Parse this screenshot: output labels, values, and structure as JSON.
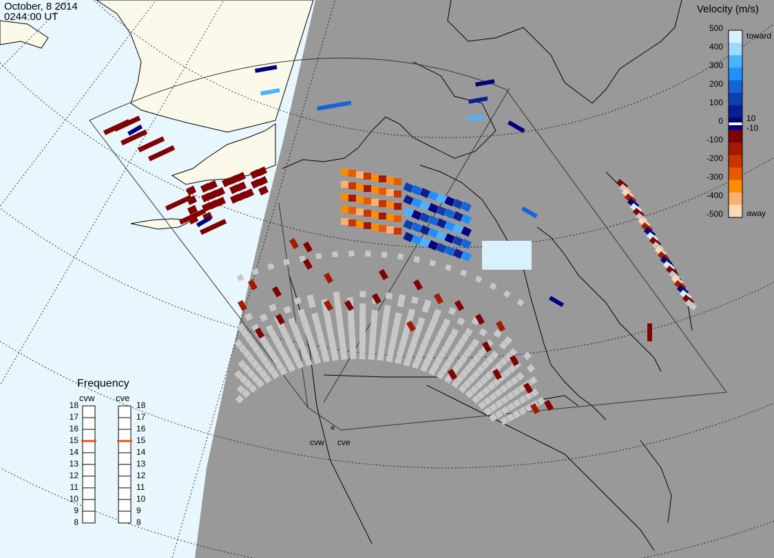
{
  "header": {
    "date": "October, 8 2014",
    "time": "0244:00 UT"
  },
  "velocity_scale": {
    "title": "Velocity (m/s)",
    "ticks": [
      "500",
      "400",
      "300",
      "200",
      "100",
      "10",
      "0",
      "-10",
      "-100",
      "-200",
      "-300",
      "-400",
      "-500"
    ],
    "toward_label": "toward",
    "away_label": "away",
    "colors": [
      "#d9f1ff",
      "#9fd9ff",
      "#4db3ff",
      "#1e90ff",
      "#1565d8",
      "#0d3fb0",
      "#0a1f8f",
      "#000080",
      "#800000",
      "#a31a00",
      "#cc3300",
      "#e85a00",
      "#ff8c00",
      "#ffb070",
      "#ffd9b3"
    ],
    "ground_scatter_color": "#c8c8c8"
  },
  "frequency_panel": {
    "title": "Frequency",
    "radars": [
      {
        "name": "cvw",
        "freq_mhz": 15
      },
      {
        "name": "cve",
        "freq_mhz": 15
      }
    ],
    "scale": [
      "18",
      "17",
      "16",
      "15",
      "14",
      "13",
      "12",
      "11",
      "10",
      "9",
      "8"
    ],
    "marker_color": "#e0501a"
  },
  "radars": [
    {
      "code": "cvw"
    },
    {
      "code": "cve"
    }
  ],
  "map_colors": {
    "ocean": "#e8f6fd",
    "land_day": "#fbfaea",
    "night": "#999999",
    "coast": "#000000"
  }
}
